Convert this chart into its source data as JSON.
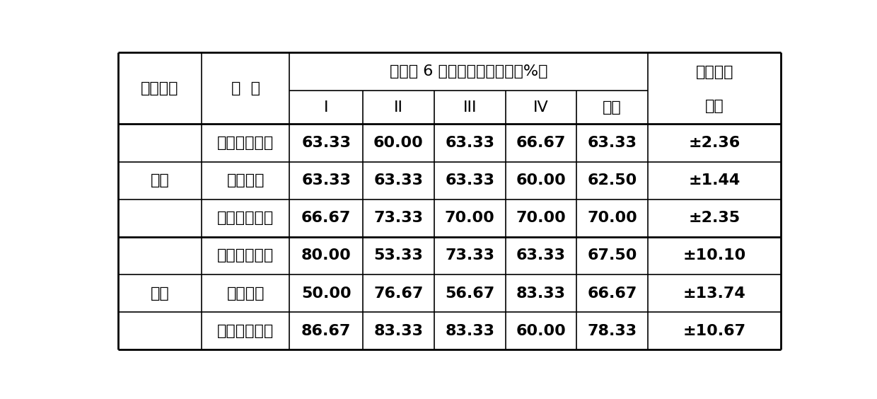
{
  "col1_header": "接种方法",
  "col2_header": "品  种",
  "main_header": "接种后 6 周各处理的病株率（%）",
  "sub_headers": [
    "I",
    "II",
    "III",
    "IV",
    "均值"
  ],
  "last_col_header_line1": "处理间标",
  "last_col_header_line2": "准误",
  "rows": [
    {
      "method": "浸根",
      "varieties": [
        {
          "name": "袖珍蜜本南瓜",
          "values": [
            "63.33",
            "60.00",
            "63.33",
            "66.67",
            "63.33"
          ],
          "se": "±2.36"
        },
        {
          "name": "蜜本南瓜",
          "values": [
            "63.33",
            "63.33",
            "63.33",
            "60.00",
            "62.50"
          ],
          "se": "±1.44"
        },
        {
          "name": "大果蜜本南瓜",
          "values": [
            "66.67",
            "73.33",
            "70.00",
            "70.00",
            "70.00"
          ],
          "se": "±2.35"
        }
      ]
    },
    {
      "method": "注射",
      "varieties": [
        {
          "name": "袖珍蜜本南瓜",
          "values": [
            "80.00",
            "53.33",
            "73.33",
            "63.33",
            "67.50"
          ],
          "se": "±10.10"
        },
        {
          "name": "蜜本南瓜",
          "values": [
            "50.00",
            "76.67",
            "56.67",
            "83.33",
            "66.67"
          ],
          "se": "±13.74"
        },
        {
          "name": "大果蜜本南瓜",
          "values": [
            "86.67",
            "83.33",
            "83.33",
            "60.00",
            "78.33"
          ],
          "se": "±10.67"
        }
      ]
    }
  ],
  "bg_color": "#ffffff",
  "line_color": "#000000",
  "font_size_header": 16,
  "font_size_cell": 16,
  "font_size_data": 16
}
